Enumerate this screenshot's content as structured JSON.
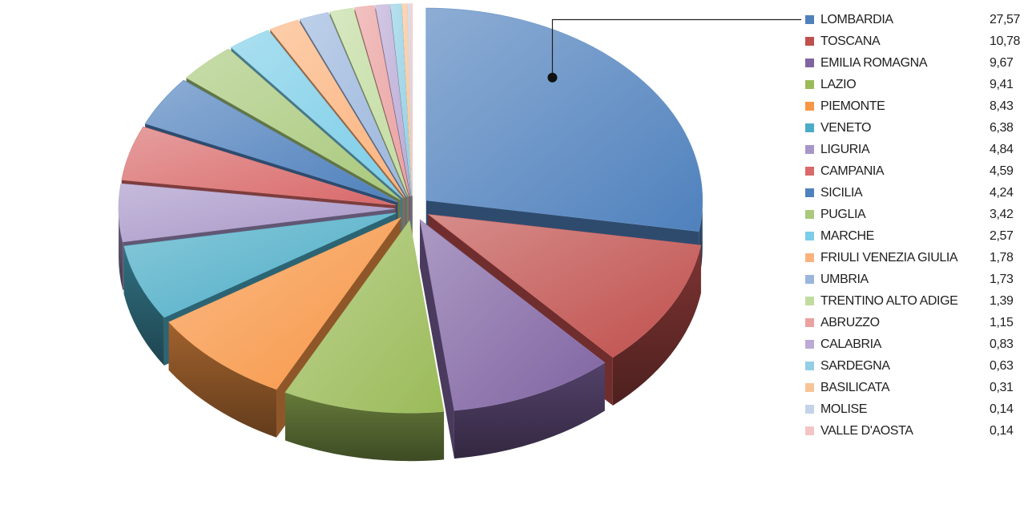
{
  "chart_data": {
    "type": "pie",
    "title": "",
    "categories": [
      "LOMBARDIA",
      "TOSCANA",
      "EMILIA ROMAGNA",
      "LAZIO",
      "PIEMONTE",
      "VENETO",
      "LIGURIA",
      "CAMPANIA",
      "SICILIA",
      "PUGLIA",
      "MARCHE",
      "FRIULI VENEZIA GIULIA",
      "UMBRIA",
      "TRENTINO ALTO ADIGE",
      "ABRUZZO",
      "CALABRIA",
      "SARDEGNA",
      "BASILICATA",
      "MOLISE",
      "VALLE D'AOSTA"
    ],
    "values": [
      27.57,
      10.78,
      9.67,
      9.41,
      8.43,
      6.38,
      4.84,
      4.59,
      4.24,
      3.42,
      2.57,
      1.78,
      1.73,
      1.39,
      1.15,
      0.83,
      0.63,
      0.31,
      0.14,
      0.14
    ],
    "value_labels": [
      "27,57",
      "10,78",
      "9,67",
      "9,41",
      "8,43",
      "6,38",
      "4,84",
      "4,59",
      "4,24",
      "3,42",
      "2,57",
      "1,78",
      "1,73",
      "1,39",
      "1,15",
      "0,83",
      "0,63",
      "0,31",
      "0,14",
      "0,14"
    ],
    "colors": [
      "#4f81bd",
      "#c0504d",
      "#8064a2",
      "#9bbb59",
      "#f79646",
      "#4bacc6",
      "#a896c8",
      "#d9696a",
      "#4f81bd",
      "#a9c97c",
      "#7ccde8",
      "#fbb37d",
      "#9bb6dd",
      "#c2dca0",
      "#eaa1a0",
      "#bcaad6",
      "#93cfe4",
      "#f8c497",
      "#c5d3ea",
      "#f4c4c4"
    ],
    "exploded": true,
    "three_d": true,
    "legend": "right",
    "callout": "LOMBARDIA"
  }
}
